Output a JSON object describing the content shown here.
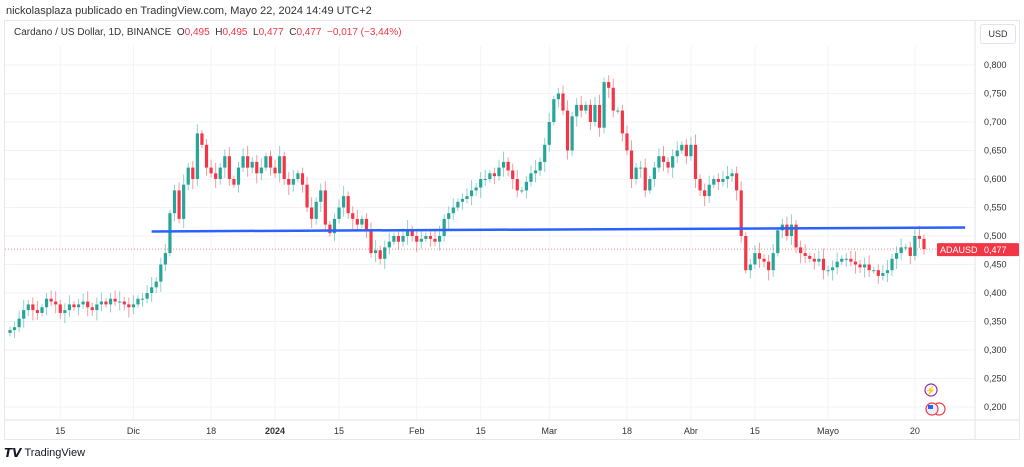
{
  "header": {
    "title": "nickolasplaza publicado en TradingView.com, Mayo 22, 2024 14:49 UTC+2"
  },
  "legend": {
    "symbol": "Cardano / US Dollar, 1D, BINANCE",
    "o_label": "O",
    "o": "0,495",
    "h_label": "H",
    "h": "0,495",
    "l_label": "L",
    "l": "0,477",
    "c_label": "C",
    "c": "0,477",
    "change": "−0,017 (−3,44%)"
  },
  "currency_button": "USD",
  "price_tag": {
    "symbol": "ADAUSD",
    "value": "0,477"
  },
  "footer": {
    "brand": "TradingView"
  },
  "icons": [
    "lightning-event-icon",
    "us-flag-event-icon"
  ],
  "colors": {
    "up": "#26a69a",
    "down": "#f23645",
    "trendline": "#2962ff",
    "tag": "#f23645"
  },
  "chart_data": {
    "type": "candlestick",
    "start_date": "2023-11-04",
    "first_open": 0.33,
    "ylim": [
      0.18,
      0.82
    ],
    "y_ticks": [
      "0,800",
      "0,750",
      "0,700",
      "0,650",
      "0,600",
      "0,550",
      "0,500",
      "0,450",
      "0,400",
      "0,350",
      "0,300",
      "0,250",
      "0,200"
    ],
    "y_tick_values": [
      0.8,
      0.75,
      0.7,
      0.65,
      0.6,
      0.55,
      0.5,
      0.45,
      0.4,
      0.35,
      0.3,
      0.25,
      0.2
    ],
    "x_ticks": [
      {
        "label": "15",
        "date": "2023-11-15"
      },
      {
        "label": "Dic",
        "date": "2023-12-01"
      },
      {
        "label": "18",
        "date": "2023-12-18"
      },
      {
        "label": "2024",
        "date": "2024-01-01",
        "bold": true
      },
      {
        "label": "15",
        "date": "2024-01-15"
      },
      {
        "label": "Feb",
        "date": "2024-02-01"
      },
      {
        "label": "15",
        "date": "2024-02-15"
      },
      {
        "label": "Mar",
        "date": "2024-03-01"
      },
      {
        "label": "18",
        "date": "2024-03-18"
      },
      {
        "label": "Abr",
        "date": "2024-04-01"
      },
      {
        "label": "15",
        "date": "2024-04-15"
      },
      {
        "label": "Mayo",
        "date": "2024-05-01"
      },
      {
        "label": "20",
        "date": "2024-05-20"
      }
    ],
    "close": [
      0.335,
      0.34,
      0.355,
      0.37,
      0.38,
      0.37,
      0.365,
      0.375,
      0.39,
      0.385,
      0.38,
      0.365,
      0.37,
      0.38,
      0.375,
      0.38,
      0.385,
      0.375,
      0.37,
      0.38,
      0.385,
      0.38,
      0.39,
      0.385,
      0.385,
      0.38,
      0.375,
      0.38,
      0.39,
      0.39,
      0.4,
      0.41,
      0.42,
      0.45,
      0.47,
      0.54,
      0.58,
      0.53,
      0.59,
      0.62,
      0.6,
      0.68,
      0.66,
      0.62,
      0.61,
      0.6,
      0.62,
      0.64,
      0.6,
      0.59,
      0.62,
      0.64,
      0.62,
      0.63,
      0.61,
      0.62,
      0.64,
      0.62,
      0.61,
      0.64,
      0.6,
      0.59,
      0.6,
      0.61,
      0.59,
      0.55,
      0.53,
      0.56,
      0.58,
      0.52,
      0.505,
      0.53,
      0.55,
      0.57,
      0.54,
      0.53,
      0.52,
      0.53,
      0.51,
      0.47,
      0.475,
      0.46,
      0.48,
      0.49,
      0.5,
      0.49,
      0.5,
      0.51,
      0.5,
      0.49,
      0.495,
      0.5,
      0.495,
      0.49,
      0.5,
      0.53,
      0.54,
      0.55,
      0.56,
      0.565,
      0.57,
      0.58,
      0.585,
      0.6,
      0.6,
      0.61,
      0.605,
      0.62,
      0.63,
      0.615,
      0.6,
      0.58,
      0.58,
      0.595,
      0.61,
      0.615,
      0.63,
      0.66,
      0.7,
      0.74,
      0.75,
      0.72,
      0.65,
      0.71,
      0.73,
      0.72,
      0.73,
      0.7,
      0.73,
      0.69,
      0.77,
      0.76,
      0.72,
      0.72,
      0.68,
      0.65,
      0.6,
      0.62,
      0.62,
      0.58,
      0.6,
      0.62,
      0.64,
      0.63,
      0.62,
      0.64,
      0.65,
      0.66,
      0.64,
      0.66,
      0.6,
      0.58,
      0.57,
      0.59,
      0.6,
      0.595,
      0.6,
      0.605,
      0.61,
      0.58,
      0.5,
      0.44,
      0.45,
      0.47,
      0.46,
      0.455,
      0.44,
      0.47,
      0.51,
      0.52,
      0.5,
      0.52,
      0.48,
      0.47,
      0.465,
      0.46,
      0.455,
      0.46,
      0.44,
      0.44,
      0.445,
      0.455,
      0.46,
      0.46,
      0.455,
      0.45,
      0.445,
      0.45,
      0.44,
      0.44,
      0.43,
      0.435,
      0.44,
      0.46,
      0.47,
      0.48,
      0.48,
      0.465,
      0.5,
      0.495,
      0.477
    ],
    "trendline": [
      {
        "date": "2023-12-05",
        "price": 0.508
      },
      {
        "date": "2024-05-31",
        "price": 0.515
      }
    ],
    "last_price": 0.477
  }
}
